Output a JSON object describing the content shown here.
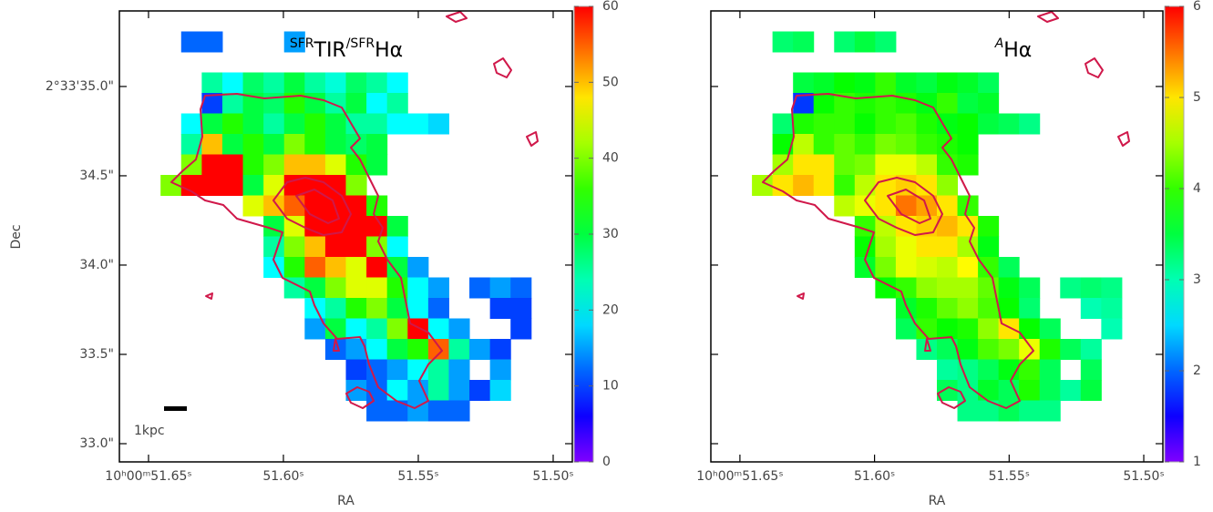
{
  "chart_data": [
    {
      "type": "heatmap",
      "title": [
        "SFR",
        "TIR",
        "/SFR",
        "Hα"
      ],
      "title_italic": false,
      "colormap": "rainbow",
      "xlabel": "RA",
      "ylabel": "Dec",
      "scale_bar_label": "1kpc",
      "show_ytick_labels": true,
      "xlim": [
        51.6608,
        51.4929
      ],
      "ylim": [
        32.898,
        35.423
      ],
      "xticks": [
        {
          "value": 51.65,
          "label": "10ʰ00ᵐ51.65ˢ"
        },
        {
          "value": 51.6,
          "label": "51.60ˢ"
        },
        {
          "value": 51.55,
          "label": "51.55ˢ"
        },
        {
          "value": 51.5,
          "label": "51.50ˢ"
        }
      ],
      "yticks": [
        {
          "value": 33.0,
          "label": "33.0\""
        },
        {
          "value": 33.5,
          "label": "33.5\""
        },
        {
          "value": 34.0,
          "label": "34.0\""
        },
        {
          "value": 34.5,
          "label": "34.5\""
        },
        {
          "value": 35.0,
          "label": "2°33'35.0\""
        }
      ],
      "clim": [
        0,
        60
      ],
      "cticks": [
        0,
        10,
        20,
        30,
        40,
        50,
        60
      ],
      "z": [
        [
          null,
          null,
          null,
          null,
          null,
          null,
          null,
          null,
          null,
          null,
          null,
          null,
          null,
          null,
          null,
          null,
          null,
          null,
          null,
          null,
          null,
          null
        ],
        [
          null,
          null,
          null,
          12,
          12,
          null,
          null,
          null,
          15,
          null,
          null,
          null,
          null,
          null,
          null,
          null,
          null,
          null,
          null,
          null,
          null,
          null
        ],
        [
          null,
          null,
          null,
          null,
          null,
          null,
          null,
          null,
          null,
          null,
          null,
          null,
          null,
          null,
          null,
          null,
          null,
          null,
          null,
          null,
          null,
          null
        ],
        [
          null,
          null,
          null,
          null,
          25,
          20,
          28,
          25,
          30,
          25,
          22,
          28,
          25,
          20,
          null,
          null,
          null,
          null,
          null,
          null,
          null,
          null
        ],
        [
          null,
          null,
          null,
          null,
          10,
          25,
          30,
          28,
          35,
          30,
          25,
          30,
          20,
          25,
          null,
          null,
          null,
          null,
          null,
          null,
          null,
          null
        ],
        [
          null,
          null,
          null,
          20,
          30,
          35,
          30,
          25,
          30,
          35,
          30,
          25,
          25,
          20,
          20,
          18,
          null,
          null,
          null,
          null,
          null,
          null
        ],
        [
          null,
          null,
          null,
          25,
          50,
          30,
          35,
          30,
          40,
          35,
          30,
          28,
          30,
          null,
          null,
          null,
          null,
          null,
          null,
          null,
          null,
          null
        ],
        [
          null,
          null,
          null,
          40,
          60,
          60,
          35,
          40,
          50,
          50,
          45,
          35,
          30,
          null,
          null,
          null,
          null,
          null,
          null,
          null,
          null,
          null
        ],
        [
          null,
          null,
          40,
          60,
          60,
          60,
          30,
          45,
          60,
          60,
          60,
          40,
          null,
          null,
          null,
          null,
          null,
          null,
          null,
          null,
          null,
          null
        ],
        [
          null,
          null,
          null,
          null,
          null,
          null,
          45,
          50,
          55,
          60,
          60,
          60,
          35,
          null,
          null,
          null,
          null,
          null,
          null,
          null,
          null,
          null
        ],
        [
          null,
          null,
          null,
          null,
          null,
          null,
          null,
          30,
          45,
          60,
          60,
          60,
          60,
          30,
          null,
          null,
          null,
          null,
          null,
          null,
          null,
          null
        ],
        [
          null,
          null,
          null,
          null,
          null,
          null,
          null,
          25,
          40,
          50,
          60,
          60,
          40,
          20,
          null,
          null,
          null,
          null,
          null,
          null,
          null,
          null
        ],
        [
          null,
          null,
          null,
          null,
          null,
          null,
          null,
          20,
          35,
          55,
          50,
          45,
          60,
          30,
          15,
          null,
          null,
          null,
          null,
          null,
          null,
          null
        ],
        [
          null,
          null,
          null,
          null,
          null,
          null,
          null,
          null,
          25,
          30,
          40,
          45,
          45,
          35,
          20,
          15,
          null,
          12,
          15,
          12,
          null,
          null
        ],
        [
          null,
          null,
          null,
          null,
          null,
          null,
          null,
          null,
          null,
          20,
          25,
          35,
          40,
          30,
          20,
          12,
          null,
          null,
          10,
          10,
          null,
          null
        ],
        [
          null,
          null,
          null,
          null,
          null,
          null,
          null,
          null,
          null,
          15,
          30,
          20,
          25,
          40,
          60,
          20,
          15,
          null,
          null,
          10,
          null,
          null
        ],
        [
          null,
          null,
          null,
          null,
          null,
          null,
          null,
          null,
          null,
          null,
          12,
          15,
          20,
          30,
          35,
          55,
          25,
          15,
          10,
          null,
          null,
          null
        ],
        [
          null,
          null,
          null,
          null,
          null,
          null,
          null,
          null,
          null,
          null,
          null,
          10,
          12,
          15,
          20,
          25,
          15,
          null,
          15,
          null,
          null,
          null
        ],
        [
          null,
          null,
          null,
          null,
          null,
          null,
          null,
          null,
          null,
          null,
          null,
          15,
          12,
          20,
          15,
          25,
          15,
          10,
          18,
          null,
          null,
          null
        ],
        [
          null,
          null,
          null,
          null,
          null,
          null,
          null,
          null,
          null,
          null,
          null,
          null,
          12,
          12,
          15,
          12,
          12,
          null,
          null,
          null,
          null,
          null
        ],
        [
          null,
          null,
          null,
          null,
          null,
          null,
          null,
          null,
          null,
          null,
          null,
          null,
          null,
          null,
          null,
          null,
          null,
          null,
          null,
          null,
          null,
          null
        ],
        [
          null,
          null,
          null,
          null,
          null,
          null,
          null,
          null,
          null,
          null,
          null,
          null,
          null,
          null,
          null,
          null,
          null,
          null,
          null,
          null,
          null,
          null
        ]
      ]
    },
    {
      "type": "heatmap",
      "title": [
        "A",
        "Hα"
      ],
      "title_italic": true,
      "colormap": "rainbow",
      "xlabel": "RA",
      "show_ytick_labels": false,
      "xlim": [
        51.6608,
        51.4929
      ],
      "ylim": [
        32.898,
        35.423
      ],
      "xticks": [
        {
          "value": 51.65,
          "label": "10ʰ00ᵐ51.65ˢ"
        },
        {
          "value": 51.6,
          "label": "51.60ˢ"
        },
        {
          "value": 51.55,
          "label": "51.55ˢ"
        },
        {
          "value": 51.5,
          "label": "51.50ˢ"
        }
      ],
      "yticks": [
        33.0,
        33.5,
        34.0,
        34.5,
        35.0
      ],
      "clim": [
        1,
        6
      ],
      "cticks": [
        1,
        2,
        3,
        4,
        5,
        6
      ],
      "z": [
        [
          null,
          null,
          null,
          null,
          null,
          null,
          null,
          null,
          null,
          null,
          null,
          null,
          null,
          null,
          null,
          null,
          null,
          null,
          null,
          null,
          null,
          null
        ],
        [
          null,
          null,
          null,
          3.3,
          3.4,
          null,
          3.3,
          3.5,
          3.3,
          null,
          null,
          null,
          null,
          null,
          null,
          null,
          null,
          null,
          null,
          null,
          null,
          null
        ],
        [
          null,
          null,
          null,
          null,
          null,
          null,
          null,
          null,
          null,
          null,
          null,
          null,
          null,
          null,
          null,
          null,
          null,
          null,
          null,
          null,
          null,
          null
        ],
        [
          null,
          null,
          null,
          null,
          3.5,
          3.6,
          3.8,
          3.7,
          4.0,
          3.6,
          3.5,
          3.7,
          3.6,
          3.4,
          null,
          null,
          null,
          null,
          null,
          null,
          null,
          null
        ],
        [
          null,
          null,
          null,
          null,
          1.8,
          3.8,
          4.0,
          3.9,
          4.0,
          3.9,
          3.7,
          4.0,
          3.5,
          3.6,
          null,
          null,
          null,
          null,
          null,
          null,
          null,
          null
        ],
        [
          null,
          null,
          null,
          3.3,
          3.9,
          4.0,
          4.0,
          3.8,
          4.0,
          4.1,
          3.9,
          3.7,
          3.8,
          3.5,
          3.4,
          3.2,
          null,
          null,
          null,
          null,
          null,
          null
        ],
        [
          null,
          null,
          null,
          3.8,
          4.6,
          4.0,
          4.2,
          4.0,
          4.3,
          4.2,
          4.0,
          3.9,
          3.8,
          null,
          null,
          null,
          null,
          null,
          null,
          null,
          null,
          null
        ],
        [
          null,
          null,
          null,
          4.5,
          5.0,
          5.0,
          4.2,
          4.3,
          4.8,
          4.8,
          4.6,
          4.0,
          3.9,
          null,
          null,
          null,
          null,
          null,
          null,
          null,
          null,
          null
        ],
        [
          null,
          null,
          4.5,
          5.0,
          5.2,
          5.0,
          4.0,
          4.6,
          5.0,
          5.1,
          5.0,
          4.4,
          null,
          null,
          null,
          null,
          null,
          null,
          null,
          null,
          null,
          null
        ],
        [
          null,
          null,
          null,
          null,
          null,
          null,
          4.6,
          4.8,
          5.0,
          5.5,
          5.3,
          5.0,
          4.0,
          null,
          null,
          null,
          null,
          null,
          null,
          null,
          null,
          null
        ],
        [
          null,
          null,
          null,
          null,
          null,
          null,
          null,
          4.0,
          4.6,
          5.0,
          5.1,
          5.2,
          5.0,
          3.9,
          null,
          null,
          null,
          null,
          null,
          null,
          null,
          null
        ],
        [
          null,
          null,
          null,
          null,
          null,
          null,
          null,
          3.8,
          4.5,
          4.8,
          5.0,
          5.0,
          4.5,
          3.7,
          null,
          null,
          null,
          null,
          null,
          null,
          null,
          null
        ],
        [
          null,
          null,
          null,
          null,
          null,
          null,
          null,
          3.6,
          4.3,
          4.8,
          4.7,
          4.6,
          4.9,
          4.0,
          3.4,
          null,
          null,
          null,
          null,
          null,
          null,
          null
        ],
        [
          null,
          null,
          null,
          null,
          null,
          null,
          null,
          null,
          3.8,
          4.0,
          4.4,
          4.5,
          4.5,
          4.2,
          3.7,
          3.4,
          null,
          3.2,
          3.3,
          3.2,
          null,
          null
        ],
        [
          null,
          null,
          null,
          null,
          null,
          null,
          null,
          null,
          null,
          3.6,
          3.9,
          4.2,
          4.4,
          4.1,
          3.8,
          3.3,
          null,
          null,
          3.0,
          3.1,
          null,
          null
        ],
        [
          null,
          null,
          null,
          null,
          null,
          null,
          null,
          null,
          null,
          3.4,
          4.0,
          3.8,
          3.9,
          4.4,
          5.0,
          3.8,
          3.4,
          null,
          null,
          3.0,
          null,
          null
        ],
        [
          null,
          null,
          null,
          null,
          null,
          null,
          null,
          null,
          null,
          null,
          3.2,
          3.4,
          3.7,
          4.1,
          4.3,
          4.8,
          3.9,
          3.4,
          3.1,
          null,
          null,
          null
        ],
        [
          null,
          null,
          null,
          null,
          null,
          null,
          null,
          null,
          null,
          null,
          null,
          3.1,
          3.2,
          3.4,
          3.7,
          4.0,
          3.4,
          null,
          3.4,
          null,
          null,
          null
        ],
        [
          null,
          null,
          null,
          null,
          null,
          null,
          null,
          null,
          null,
          null,
          null,
          3.4,
          3.2,
          3.6,
          3.4,
          3.9,
          3.4,
          3.1,
          3.5,
          null,
          null,
          null
        ],
        [
          null,
          null,
          null,
          null,
          null,
          null,
          null,
          null,
          null,
          null,
          null,
          null,
          3.2,
          3.2,
          3.4,
          3.2,
          3.2,
          null,
          null,
          null,
          null,
          null
        ],
        [
          null,
          null,
          null,
          null,
          null,
          null,
          null,
          null,
          null,
          null,
          null,
          null,
          null,
          null,
          null,
          null,
          null,
          null,
          null,
          null,
          null,
          null
        ],
        [
          null,
          null,
          null,
          null,
          null,
          null,
          null,
          null,
          null,
          null,
          null,
          null,
          null,
          null,
          null,
          null,
          null,
          null,
          null,
          null,
          null,
          null
        ]
      ]
    }
  ]
}
